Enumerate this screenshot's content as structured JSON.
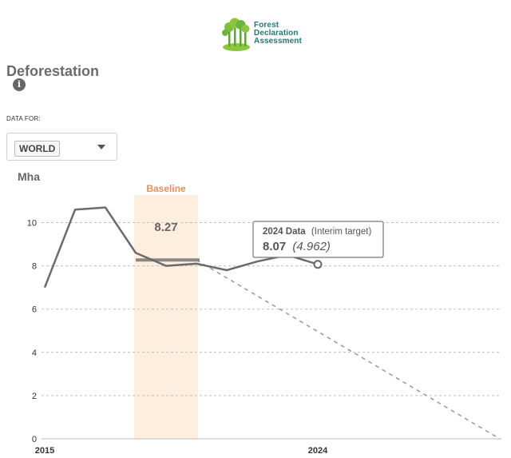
{
  "logo": {
    "line1": "Forest",
    "line2": "Declaration",
    "line3": "Assessment",
    "icon": "tree-logo-icon"
  },
  "header": {
    "title": "Deforestation",
    "info_icon": "i"
  },
  "filter": {
    "label": "DATA FOR:",
    "selected": "WORLD"
  },
  "colors": {
    "line": "#6b6b6b",
    "baseline_band": "#fdeedd",
    "baseline_label": "#e0935c",
    "grid": "#bdbdbd",
    "target": "#999999"
  },
  "chart_data": {
    "type": "line",
    "unit_label": "Mha",
    "x": [
      2015,
      2016,
      2017,
      2018,
      2019,
      2020,
      2021,
      2022,
      2023,
      2024
    ],
    "values": [
      7.0,
      10.6,
      10.7,
      8.6,
      8.0,
      8.1,
      7.8,
      8.2,
      8.5,
      8.07
    ],
    "ylim": [
      0,
      11
    ],
    "yticks": [
      "0",
      "2",
      "4",
      "6",
      "8",
      "10"
    ],
    "xticks": [
      "2015",
      "2024"
    ],
    "baseline": {
      "label": "Baseline",
      "start": 2018,
      "end": 2020,
      "value": 8.27,
      "value_label": "8.27"
    },
    "target_line": {
      "from_x": 2020,
      "from_y": 8.27,
      "to_x": 2030,
      "to_y": 0
    },
    "tooltip": {
      "year_label": "2024 Data",
      "note": "(Interim target)",
      "value": "8.07",
      "target_value": "(4.962)"
    }
  }
}
